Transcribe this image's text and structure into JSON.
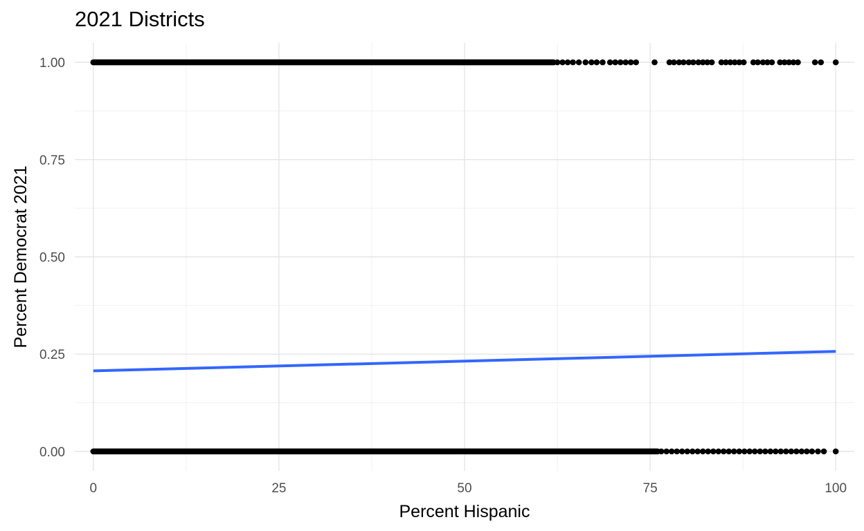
{
  "chart_data": {
    "type": "scatter",
    "title": "2021 Districts",
    "xlabel": "Percent Hispanic",
    "ylabel": "Percent Democrat 2021",
    "xlim": [
      -2.5,
      102.5
    ],
    "ylim": [
      -0.05,
      1.05
    ],
    "x_ticks": [
      0,
      25,
      50,
      75,
      100
    ],
    "y_ticks": [
      0.0,
      0.25,
      0.5,
      0.75,
      1.0
    ],
    "x_tick_labels": [
      "0",
      "25",
      "50",
      "75",
      "100"
    ],
    "y_tick_labels": [
      "0.00",
      "0.25",
      "0.50",
      "0.75",
      "1.00"
    ],
    "grid": true,
    "series": [
      {
        "kind": "points",
        "color": "#000000",
        "dense_segments": [
          {
            "y": 1,
            "x_from": 0,
            "x_to": 62
          },
          {
            "y": 0,
            "x_from": 0,
            "x_to": 76
          }
        ],
        "points": [
          {
            "x": 62.5,
            "y": 1
          },
          {
            "x": 63.2,
            "y": 1
          },
          {
            "x": 63.9,
            "y": 1
          },
          {
            "x": 64.6,
            "y": 1
          },
          {
            "x": 65.4,
            "y": 1
          },
          {
            "x": 66.3,
            "y": 1
          },
          {
            "x": 67.1,
            "y": 1
          },
          {
            "x": 67.8,
            "y": 1
          },
          {
            "x": 68.6,
            "y": 1
          },
          {
            "x": 69.6,
            "y": 1
          },
          {
            "x": 70.3,
            "y": 1
          },
          {
            "x": 71.0,
            "y": 1
          },
          {
            "x": 71.7,
            "y": 1
          },
          {
            "x": 72.4,
            "y": 1
          },
          {
            "x": 73.1,
            "y": 1
          },
          {
            "x": 75.6,
            "y": 1
          },
          {
            "x": 77.6,
            "y": 1
          },
          {
            "x": 78.2,
            "y": 1
          },
          {
            "x": 78.9,
            "y": 1
          },
          {
            "x": 79.5,
            "y": 1
          },
          {
            "x": 80.2,
            "y": 1
          },
          {
            "x": 80.8,
            "y": 1
          },
          {
            "x": 81.5,
            "y": 1
          },
          {
            "x": 82.1,
            "y": 1
          },
          {
            "x": 82.7,
            "y": 1
          },
          {
            "x": 83.3,
            "y": 1
          },
          {
            "x": 84.6,
            "y": 1
          },
          {
            "x": 85.2,
            "y": 1
          },
          {
            "x": 85.8,
            "y": 1
          },
          {
            "x": 86.4,
            "y": 1
          },
          {
            "x": 87.0,
            "y": 1
          },
          {
            "x": 87.6,
            "y": 1
          },
          {
            "x": 88.9,
            "y": 1
          },
          {
            "x": 89.5,
            "y": 1
          },
          {
            "x": 90.2,
            "y": 1
          },
          {
            "x": 90.8,
            "y": 1
          },
          {
            "x": 91.4,
            "y": 1
          },
          {
            "x": 92.5,
            "y": 1
          },
          {
            "x": 93.1,
            "y": 1
          },
          {
            "x": 93.7,
            "y": 1
          },
          {
            "x": 94.3,
            "y": 1
          },
          {
            "x": 94.9,
            "y": 1
          },
          {
            "x": 97.2,
            "y": 1
          },
          {
            "x": 98.0,
            "y": 1
          },
          {
            "x": 100.0,
            "y": 1
          },
          {
            "x": 76.5,
            "y": 0
          },
          {
            "x": 77.2,
            "y": 0
          },
          {
            "x": 77.9,
            "y": 0
          },
          {
            "x": 78.6,
            "y": 0
          },
          {
            "x": 79.3,
            "y": 0
          },
          {
            "x": 80.0,
            "y": 0
          },
          {
            "x": 80.7,
            "y": 0
          },
          {
            "x": 81.4,
            "y": 0
          },
          {
            "x": 82.1,
            "y": 0
          },
          {
            "x": 82.8,
            "y": 0
          },
          {
            "x": 83.5,
            "y": 0
          },
          {
            "x": 84.2,
            "y": 0
          },
          {
            "x": 84.9,
            "y": 0
          },
          {
            "x": 85.6,
            "y": 0
          },
          {
            "x": 86.3,
            "y": 0
          },
          {
            "x": 87.0,
            "y": 0
          },
          {
            "x": 87.7,
            "y": 0
          },
          {
            "x": 88.4,
            "y": 0
          },
          {
            "x": 89.1,
            "y": 0
          },
          {
            "x": 89.8,
            "y": 0
          },
          {
            "x": 90.5,
            "y": 0
          },
          {
            "x": 91.2,
            "y": 0
          },
          {
            "x": 91.9,
            "y": 0
          },
          {
            "x": 92.6,
            "y": 0
          },
          {
            "x": 93.3,
            "y": 0
          },
          {
            "x": 94.0,
            "y": 0
          },
          {
            "x": 94.7,
            "y": 0
          },
          {
            "x": 95.4,
            "y": 0
          },
          {
            "x": 96.1,
            "y": 0
          },
          {
            "x": 96.8,
            "y": 0
          },
          {
            "x": 97.6,
            "y": 0
          },
          {
            "x": 98.4,
            "y": 0
          },
          {
            "x": 100.0,
            "y": 0
          }
        ]
      },
      {
        "kind": "fit_line",
        "color": "#3366ff",
        "x": [
          0,
          100
        ],
        "y": [
          0.207,
          0.257
        ]
      }
    ]
  }
}
